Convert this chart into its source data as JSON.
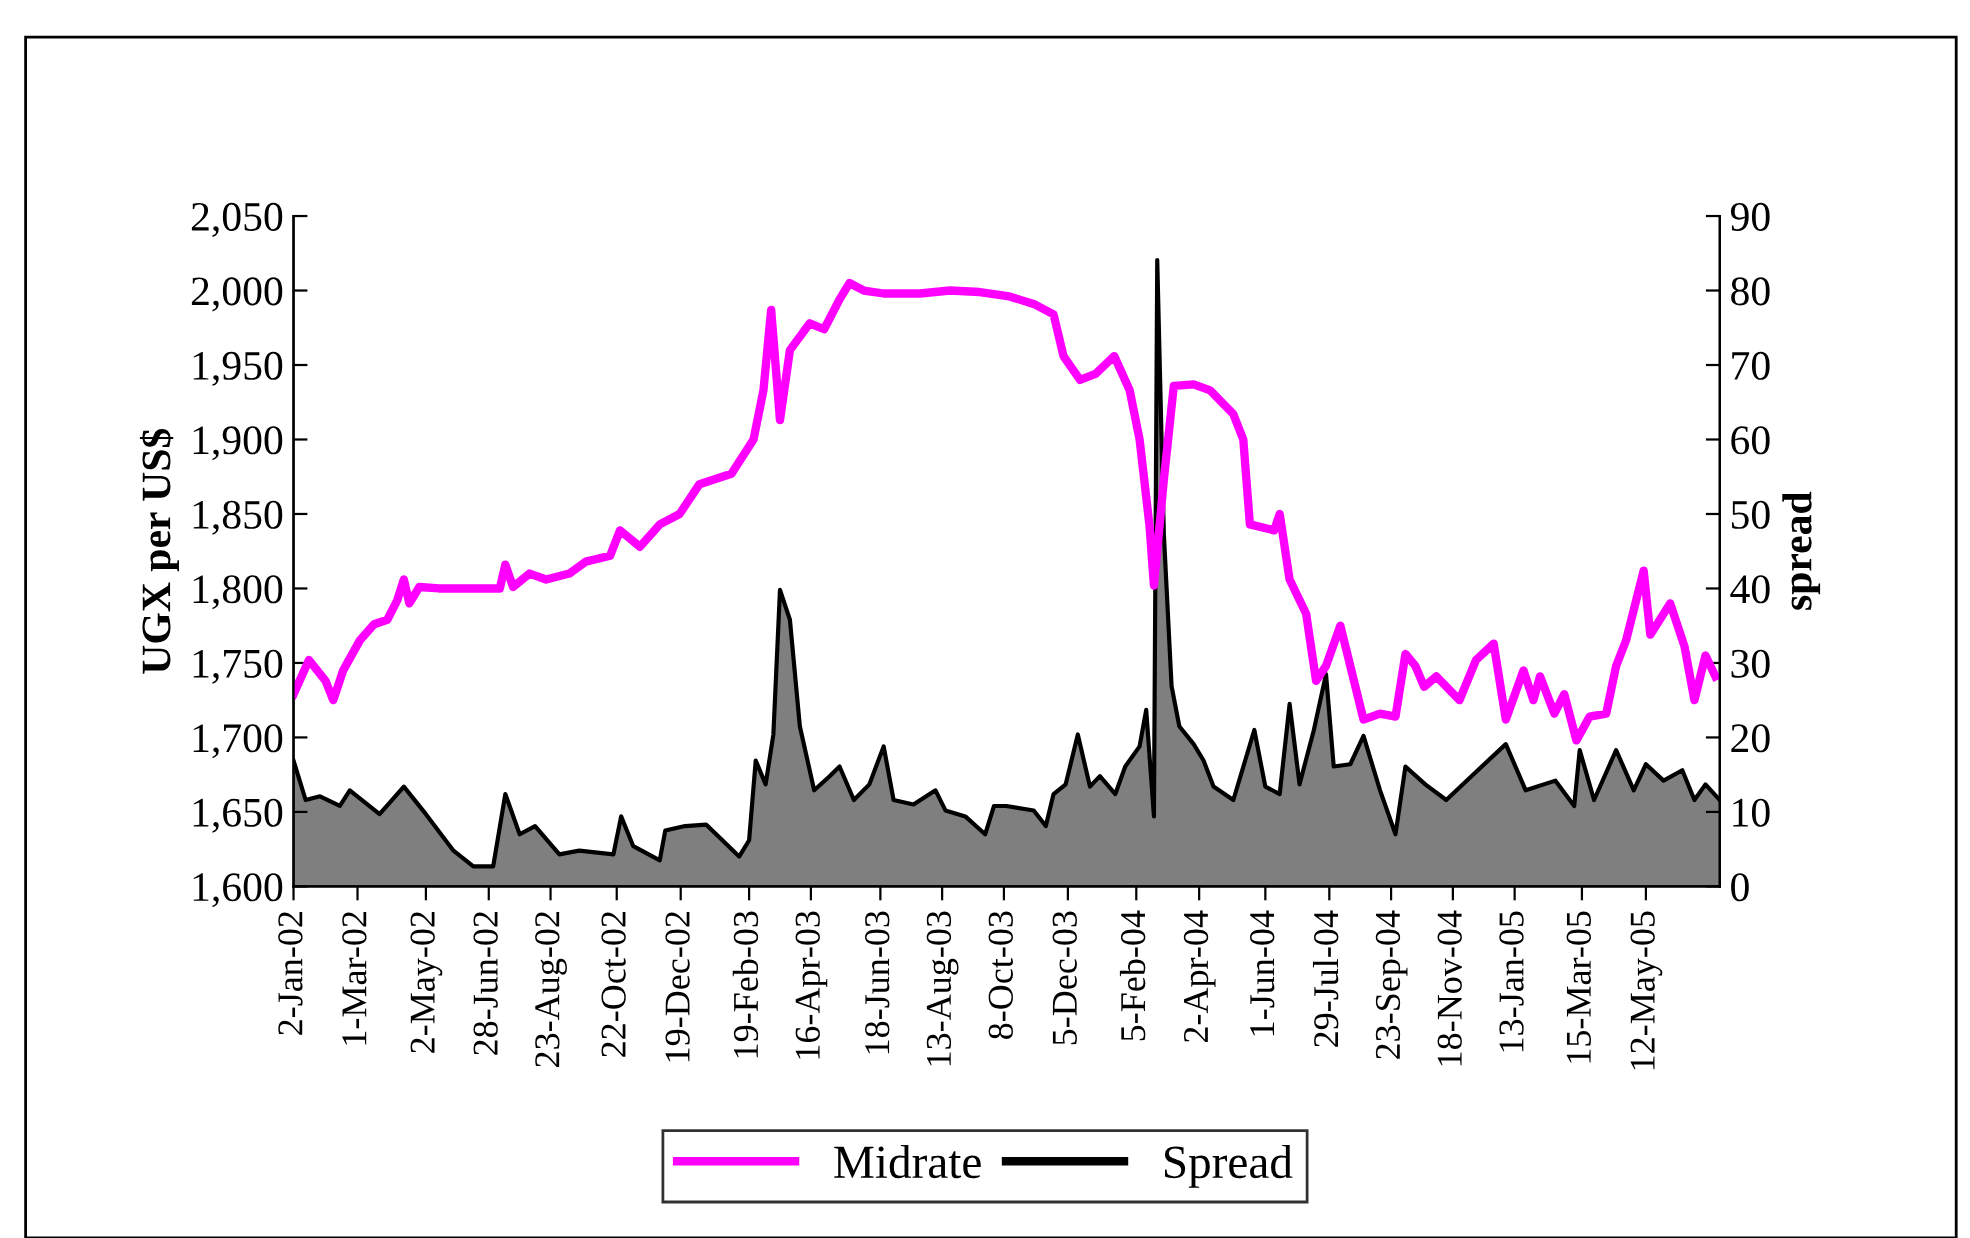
{
  "chart_data": {
    "type": "line",
    "ylabel": "UGX per US$",
    "y2label": "spread",
    "xlim": [
      "2002-01-02",
      "2005-07-18"
    ],
    "xticks": [
      {
        "value": "2002-01-02",
        "label": "2-Jan-02"
      },
      {
        "value": "2002-03-01",
        "label": "1-Mar-02"
      },
      {
        "value": "2002-05-02",
        "label": "2-May-02"
      },
      {
        "value": "2002-06-28",
        "label": "28-Jun-02"
      },
      {
        "value": "2002-08-23",
        "label": "23-Aug-02"
      },
      {
        "value": "2002-10-22",
        "label": "22-Oct-02"
      },
      {
        "value": "2002-12-19",
        "label": "19-Dec-02"
      },
      {
        "value": "2003-02-19",
        "label": "19-Feb-03"
      },
      {
        "value": "2003-04-16",
        "label": "16-Apr-03"
      },
      {
        "value": "2003-06-18",
        "label": "18-Jun-03"
      },
      {
        "value": "2003-08-13",
        "label": "13-Aug-03"
      },
      {
        "value": "2003-10-08",
        "label": "8-Oct-03"
      },
      {
        "value": "2003-12-05",
        "label": "5-Dec-03"
      },
      {
        "value": "2004-02-05",
        "label": "5-Feb-04"
      },
      {
        "value": "2004-04-02",
        "label": "2-Apr-04"
      },
      {
        "value": "2004-06-01",
        "label": "1-Jun-04"
      },
      {
        "value": "2004-07-29",
        "label": "29-Jul-04"
      },
      {
        "value": "2004-09-23",
        "label": "23-Sep-04"
      },
      {
        "value": "2004-11-18",
        "label": "18-Nov-04"
      },
      {
        "value": "2005-01-13",
        "label": "13-Jan-05"
      },
      {
        "value": "2005-03-15",
        "label": "15-Mar-05"
      },
      {
        "value": "2005-05-12",
        "label": "12-May-05"
      }
    ],
    "ylim": [
      1600,
      2050
    ],
    "yticks": [
      {
        "value": 1600,
        "label": "1,600"
      },
      {
        "value": 1650,
        "label": "1,650"
      },
      {
        "value": 1700,
        "label": "1,700"
      },
      {
        "value": 1750,
        "label": "1,750"
      },
      {
        "value": 1800,
        "label": "1,800"
      },
      {
        "value": 1850,
        "label": "1,850"
      },
      {
        "value": 1900,
        "label": "1,900"
      },
      {
        "value": 1950,
        "label": "1,950"
      },
      {
        "value": 2000,
        "label": "2,000"
      },
      {
        "value": 2050,
        "label": "2,050"
      }
    ],
    "y2lim": [
      0,
      90
    ],
    "y2ticks": [
      0,
      10,
      20,
      30,
      40,
      50,
      60,
      70,
      80,
      90
    ],
    "legend": "bottom",
    "grid": false,
    "series": [
      {
        "name": "Midrate",
        "color": "#ff00ff",
        "x": [
          "2002-01-02",
          "2002-01-16",
          "2002-01-31",
          "2002-02-07",
          "2002-02-16",
          "2002-03-03",
          "2002-03-16",
          "2002-03-28",
          "2002-04-06",
          "2002-04-12",
          "2002-04-17",
          "2002-04-26",
          "2002-05-14",
          "2002-07-08",
          "2002-07-13",
          "2002-07-20",
          "2002-08-04",
          "2002-08-19",
          "2002-09-09",
          "2002-09-24",
          "2002-10-16",
          "2002-10-25",
          "2002-11-12",
          "2002-11-30",
          "2002-12-18",
          "2003-01-05",
          "2003-02-03",
          "2003-02-23",
          "2003-03-04",
          "2003-03-11",
          "2003-03-19",
          "2003-03-28",
          "2003-04-15",
          "2003-04-28",
          "2003-05-12",
          "2003-05-21",
          "2003-06-03",
          "2003-06-21",
          "2003-07-24",
          "2003-08-20",
          "2003-09-16",
          "2003-10-13",
          "2003-11-04",
          "2003-11-22",
          "2003-12-01",
          "2003-12-16",
          "2003-12-30",
          "2004-01-16",
          "2004-01-30",
          "2004-02-08",
          "2004-02-17",
          "2004-02-21",
          "2004-03-01",
          "2004-03-10",
          "2004-03-28",
          "2004-04-12",
          "2004-05-03",
          "2004-05-12",
          "2004-05-18",
          "2004-06-09",
          "2004-06-14",
          "2004-06-23",
          "2004-07-08",
          "2004-07-17",
          "2004-07-26",
          "2004-08-08",
          "2004-08-29",
          "2004-09-13",
          "2004-09-27",
          "2004-10-06",
          "2004-10-15",
          "2004-10-23",
          "2004-11-03",
          "2004-11-24",
          "2004-12-09",
          "2004-12-25",
          "2005-01-05",
          "2005-01-21",
          "2005-01-30",
          "2005-02-05",
          "2005-02-18",
          "2005-02-27",
          "2005-03-10",
          "2005-03-22",
          "2005-04-06",
          "2005-04-15",
          "2005-04-24",
          "2005-05-10",
          "2005-05-16",
          "2005-06-03",
          "2005-06-16",
          "2005-06-25",
          "2005-07-05",
          "2005-07-14"
        ],
        "values": [
          1729,
          1752,
          1738,
          1725,
          1745,
          1765,
          1776,
          1779,
          1792,
          1806,
          1790,
          1801,
          1800,
          1800,
          1816,
          1801,
          1810,
          1806,
          1810,
          1818,
          1822,
          1839,
          1828,
          1843,
          1850,
          1870,
          1877,
          1900,
          1933,
          1987,
          1913,
          1960,
          1978,
          1974,
          1994,
          2005,
          2000,
          1998,
          1998,
          2000,
          1999,
          1996,
          1991,
          1984,
          1956,
          1940,
          1944,
          1956,
          1933,
          1900,
          1842,
          1802,
          1873,
          1936,
          1937,
          1933,
          1917,
          1900,
          1843,
          1839,
          1850,
          1806,
          1783,
          1738,
          1748,
          1775,
          1712,
          1716,
          1714,
          1756,
          1748,
          1734,
          1741,
          1725,
          1752,
          1763,
          1712,
          1745,
          1725,
          1741,
          1716,
          1729,
          1698,
          1714,
          1716,
          1748,
          1765,
          1812,
          1769,
          1790,
          1761,
          1725,
          1755,
          1741
        ]
      },
      {
        "name": "Spread",
        "type": "area",
        "axis": "y2",
        "color": "#000000",
        "x": [
          "2002-01-02",
          "2002-01-13",
          "2002-01-26",
          "2002-02-13",
          "2002-02-22",
          "2002-03-21",
          "2002-04-12",
          "2002-05-02",
          "2002-05-27",
          "2002-06-14",
          "2002-07-02",
          "2002-07-13",
          "2002-07-26",
          "2002-08-09",
          "2002-08-31",
          "2002-09-18",
          "2002-10-19",
          "2002-10-26",
          "2002-11-06",
          "2002-11-30",
          "2002-12-05",
          "2002-12-23",
          "2003-01-11",
          "2003-02-10",
          "2003-02-19",
          "2003-02-25",
          "2003-03-06",
          "2003-03-13",
          "2003-03-19",
          "2003-03-28",
          "2003-04-06",
          "2003-04-19",
          "2003-05-03",
          "2003-05-12",
          "2003-05-25",
          "2003-06-08",
          "2003-06-21",
          "2003-06-30",
          "2003-07-18",
          "2003-08-07",
          "2003-08-16",
          "2003-09-03",
          "2003-09-21",
          "2003-09-29",
          "2003-10-10",
          "2003-11-04",
          "2003-11-15",
          "2003-11-22",
          "2003-12-03",
          "2003-12-14",
          "2003-12-25",
          "2004-01-03",
          "2004-01-17",
          "2004-01-26",
          "2004-02-08",
          "2004-02-14",
          "2004-02-21",
          "2004-02-24",
          "2004-03-01",
          "2004-03-08",
          "2004-03-15",
          "2004-03-28",
          "2004-04-06",
          "2004-04-15",
          "2004-05-03",
          "2004-05-22",
          "2004-06-01",
          "2004-06-14",
          "2004-06-23",
          "2004-07-02",
          "2004-07-15",
          "2004-07-26",
          "2004-08-02",
          "2004-08-17",
          "2004-08-29",
          "2004-09-13",
          "2004-09-27",
          "2004-10-06",
          "2004-10-24",
          "2004-11-12",
          "2004-12-07",
          "2005-01-05",
          "2005-01-23",
          "2005-02-19",
          "2005-03-08",
          "2005-03-13",
          "2005-03-26",
          "2005-04-15",
          "2005-05-01",
          "2005-05-12",
          "2005-05-28",
          "2005-06-14",
          "2005-06-25",
          "2005-07-05",
          "2005-07-18"
        ],
        "values": [
          16.9,
          11.6,
          12.1,
          10.8,
          12.9,
          9.7,
          13.4,
          9.7,
          4.8,
          2.7,
          2.7,
          12.4,
          7.0,
          8.1,
          4.3,
          4.8,
          4.3,
          9.4,
          5.4,
          3.5,
          7.5,
          8.1,
          8.3,
          4.0,
          6.2,
          16.9,
          13.7,
          20.4,
          39.8,
          35.8,
          21.5,
          12.9,
          14.8,
          16.1,
          11.6,
          13.7,
          18.8,
          11.6,
          11.0,
          12.9,
          10.2,
          9.4,
          7.0,
          10.8,
          10.8,
          10.2,
          8.1,
          12.4,
          13.7,
          20.4,
          13.4,
          14.8,
          12.4,
          16.1,
          18.8,
          23.7,
          9.4,
          84.1,
          47.3,
          26.9,
          21.5,
          19.1,
          16.9,
          13.4,
          11.6,
          21.0,
          13.4,
          12.4,
          24.5,
          13.7,
          21.0,
          28.5,
          16.1,
          16.4,
          20.2,
          12.9,
          7.0,
          16.1,
          13.7,
          11.6,
          15.1,
          19.1,
          12.9,
          14.2,
          10.8,
          18.3,
          11.6,
          18.3,
          12.9,
          16.4,
          14.2,
          15.6,
          11.6,
          13.7,
          11.6
        ]
      }
    ]
  }
}
